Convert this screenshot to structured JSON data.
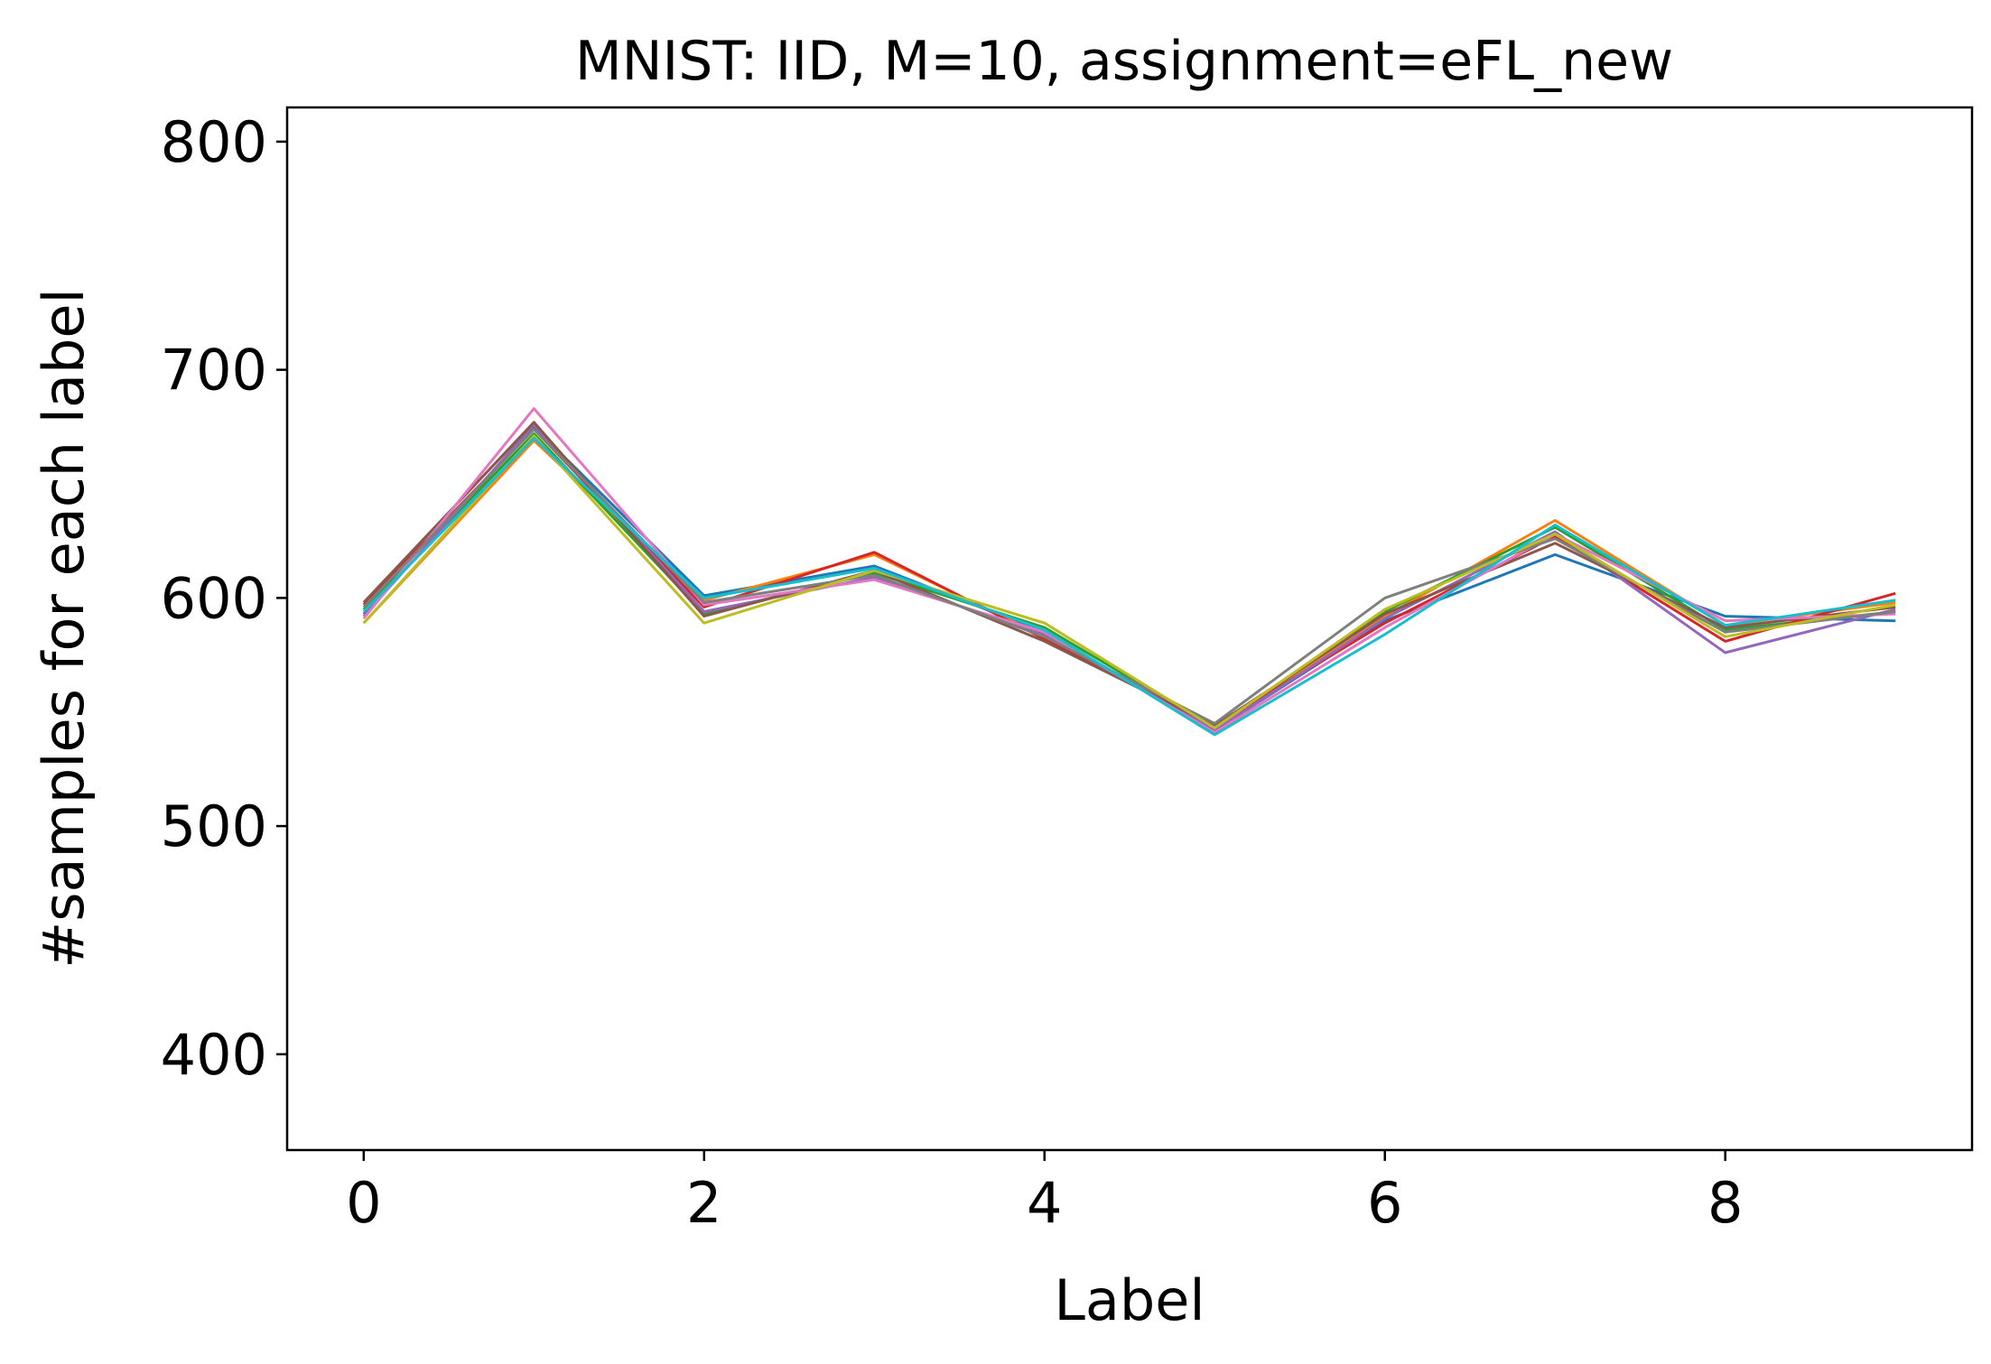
{
  "chart_data": {
    "type": "line",
    "title": "MNIST: IID, M=10, assignment=eFL_new",
    "xlabel": "Label",
    "ylabel": "#samples for each label",
    "x": [
      0,
      1,
      2,
      3,
      4,
      5,
      6,
      7,
      8,
      9
    ],
    "xlim": [
      -0.45,
      9.45
    ],
    "ylim": [
      358,
      815
    ],
    "xticks": [
      0,
      2,
      4,
      6,
      8
    ],
    "yticks": [
      400,
      500,
      600,
      700,
      800
    ],
    "grid": false,
    "legend": "none",
    "series": [
      {
        "color": "#1f77b4",
        "values": [
          593,
          675,
          601,
          614,
          585,
          542,
          590,
          619,
          592,
          590
        ]
      },
      {
        "color": "#ff7f0e",
        "values": [
          589,
          669,
          599,
          619,
          583,
          543,
          592,
          634,
          588,
          598
        ]
      },
      {
        "color": "#2ca02c",
        "values": [
          595,
          672,
          593,
          611,
          587,
          543,
          594,
          631,
          586,
          594
        ]
      },
      {
        "color": "#d62728",
        "values": [
          597,
          674,
          596,
          620,
          582,
          544,
          589,
          627,
          581,
          602
        ]
      },
      {
        "color": "#9467bd",
        "values": [
          592,
          676,
          594,
          609,
          584,
          542,
          591,
          629,
          576,
          595
        ]
      },
      {
        "color": "#8c564b",
        "values": [
          598,
          677,
          592,
          612,
          581,
          544,
          593,
          624,
          587,
          596
        ]
      },
      {
        "color": "#e377c2",
        "values": [
          591,
          683,
          597,
          608,
          585,
          541,
          587,
          628,
          590,
          593
        ]
      },
      {
        "color": "#7f7f7f",
        "values": [
          596,
          674,
          598,
          610,
          583,
          545,
          600,
          626,
          585,
          594
        ]
      },
      {
        "color": "#bcbd22",
        "values": [
          589,
          671,
          589,
          612,
          589,
          543,
          595,
          628,
          583,
          597
        ]
      },
      {
        "color": "#17becf",
        "values": [
          594,
          670,
          600,
          613,
          586,
          540,
          584,
          632,
          588,
          599
        ]
      }
    ]
  }
}
